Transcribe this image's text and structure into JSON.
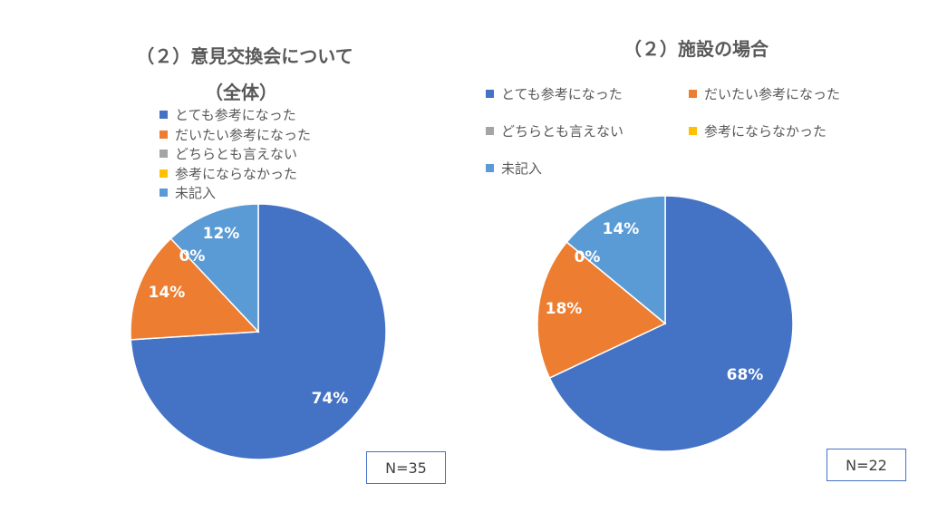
{
  "chart_data": [
    {
      "type": "pie",
      "title_lines": [
        "（２）意見交換会について",
        "（全体）"
      ],
      "legend_placement": "top",
      "categories": [
        "とても参考になった",
        "だいたい参考になった",
        "どちらとも言えない",
        "参考にならなかった",
        "未記入"
      ],
      "values": [
        74,
        14,
        0,
        0,
        12
      ],
      "value_labels": [
        "74%",
        "14%",
        "0%",
        "",
        "12%"
      ],
      "colors": [
        "#4472c4",
        "#ed7d31",
        "#a5a5a5",
        "#ffc000",
        "#5b9bd5"
      ],
      "n_label": "N=35"
    },
    {
      "type": "pie",
      "title_lines": [
        "（２）施設の場合"
      ],
      "legend_placement": "top",
      "categories": [
        "とても参考になった",
        "だいたい参考になった",
        "どちらとも言えない",
        "参考にならなかった",
        "未記入"
      ],
      "values": [
        68,
        18,
        0,
        0,
        14
      ],
      "value_labels": [
        "68%",
        "18%",
        "0%",
        "",
        "14%"
      ],
      "colors": [
        "#4472c4",
        "#ed7d31",
        "#a5a5a5",
        "#ffc000",
        "#5b9bd5"
      ],
      "n_label": "N=22"
    }
  ]
}
